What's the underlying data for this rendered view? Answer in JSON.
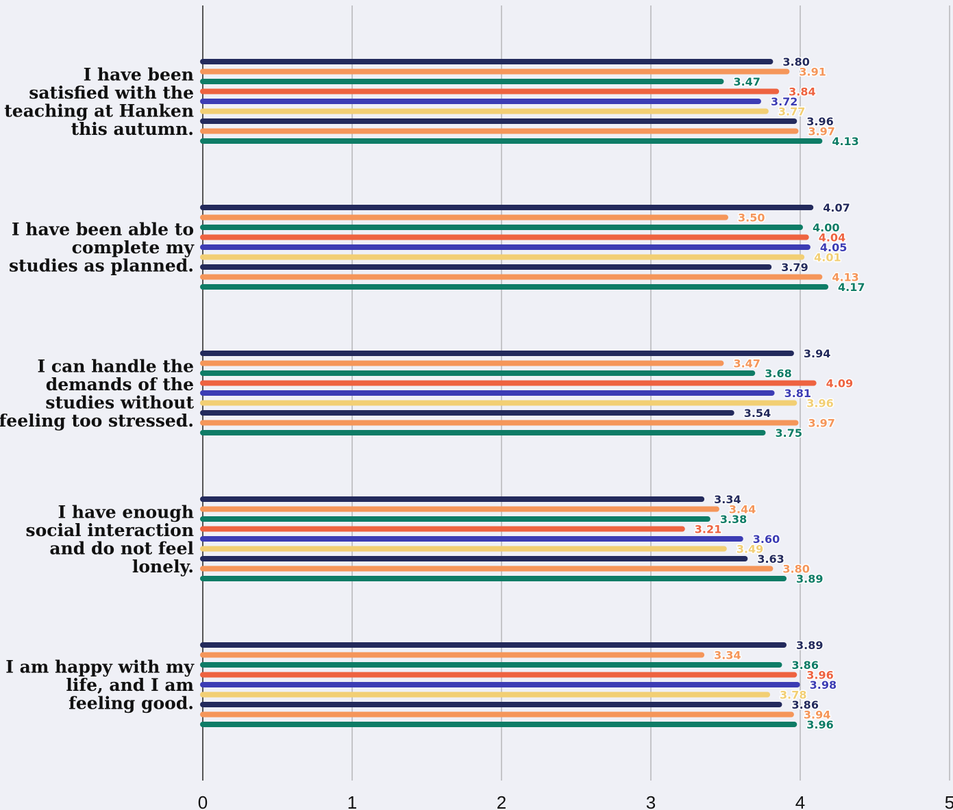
{
  "chart_data": {
    "type": "bar",
    "orientation": "horizontal",
    "categories": [
      [
        "I have been",
        "satisfied with the",
        "teaching at Hanken",
        "this autumn."
      ],
      [
        "I have been able to",
        "complete my",
        "studies as planned."
      ],
      [
        "I can handle the",
        "demands of the",
        "studies without",
        "feeling too stressed."
      ],
      [
        "I have enough",
        "social interaction",
        "and do not feel",
        "lonely."
      ],
      [
        "I am happy with my",
        "life, and I am",
        "feeling good."
      ]
    ],
    "series": [
      {
        "color": "#232a5c",
        "values": [
          3.8,
          4.07,
          3.94,
          3.34,
          3.89
        ]
      },
      {
        "color": "#f5965a",
        "values": [
          3.91,
          3.5,
          3.47,
          3.44,
          3.34
        ]
      },
      {
        "color": "#0e7c66",
        "values": [
          3.47,
          4.0,
          3.68,
          3.38,
          3.86
        ]
      },
      {
        "color": "#ee6340",
        "values": [
          3.84,
          4.04,
          4.09,
          3.21,
          3.96
        ]
      },
      {
        "color": "#3c3cb4",
        "values": [
          3.72,
          4.05,
          3.81,
          3.6,
          3.98
        ]
      },
      {
        "color": "#f2cf74",
        "values": [
          3.77,
          4.01,
          3.96,
          3.49,
          3.78
        ]
      },
      {
        "color": "#232a5c",
        "values": [
          3.96,
          3.79,
          3.54,
          3.63,
          3.86
        ]
      },
      {
        "color": "#f5965a",
        "values": [
          3.97,
          4.13,
          3.97,
          3.8,
          3.94
        ]
      },
      {
        "color": "#0e7c66",
        "values": [
          4.13,
          4.17,
          3.75,
          3.89,
          3.96
        ]
      }
    ],
    "value_labels": [
      [
        "3.80",
        "3.91",
        "3.47",
        "3.84",
        "3.72",
        "3.77",
        "3.96",
        "3.97",
        "4.13"
      ],
      [
        "4.07",
        "3.50",
        "4.00",
        "4.04",
        "4.05",
        "4.01",
        "3.79",
        "4.13",
        "4.17"
      ],
      [
        "3.94",
        "3.47",
        "3.68",
        "4.09",
        "3.81",
        "3.96",
        "3.54",
        "3.97",
        "3.75"
      ],
      [
        "3.34",
        "3.44",
        "3.38",
        "3.21",
        "3.60",
        "3.49",
        "3.63",
        "3.80",
        "3.89"
      ],
      [
        "3.89",
        "3.34",
        "3.86",
        "3.96",
        "3.98",
        "3.78",
        "3.86",
        "3.94",
        "3.96"
      ]
    ],
    "x_ticks": [
      "0",
      "1",
      "2",
      "3",
      "4",
      "5"
    ],
    "xlim": [
      0,
      5
    ],
    "grid": true,
    "legend": "none",
    "title": "",
    "xlabel": "",
    "ylabel": ""
  }
}
